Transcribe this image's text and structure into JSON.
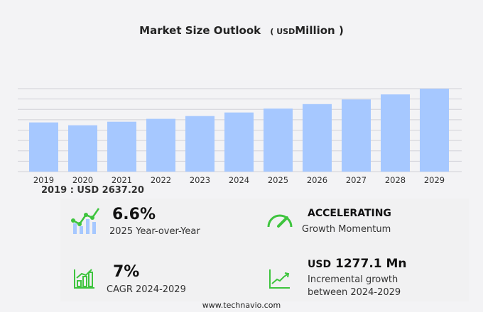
{
  "title": {
    "main": "Market Size Outlook",
    "open": "(",
    "unit": "USD",
    "million": "Million",
    "close": ")"
  },
  "chart_data": {
    "type": "bar",
    "title": "Market Size Outlook (USD Million)",
    "categories": [
      "2019",
      "2020",
      "2021",
      "2022",
      "2023",
      "2024",
      "2025",
      "2026",
      "2027",
      "2028",
      "2029"
    ],
    "values": [
      2637.2,
      2485,
      2675,
      2830,
      2980,
      3170,
      3380,
      3620,
      3870,
      4140,
      4447
    ],
    "ylim": [
      0,
      4450
    ],
    "grid": true,
    "bar_color": "#a6c8ff",
    "base_label": "2019 : USD  2637.20"
  },
  "stats": {
    "yoy": {
      "value": "6.6%",
      "label": "2025 Year-over-Year",
      "icon": "bar-trend-icon"
    },
    "momentum": {
      "value": "ACCELERATING",
      "label": "Growth Momentum",
      "icon": "speedometer-icon"
    },
    "cagr": {
      "value": "7%",
      "label": "CAGR 2024-2029",
      "icon": "bar-chart-icon"
    },
    "incremental": {
      "unit": "USD",
      "value": "1277.1 Mn",
      "label1": "Incremental growth",
      "label2": "between 2024-2029",
      "icon": "line-chart-icon"
    }
  },
  "accent": "#3ec43e",
  "footer": "www.technavio.com"
}
